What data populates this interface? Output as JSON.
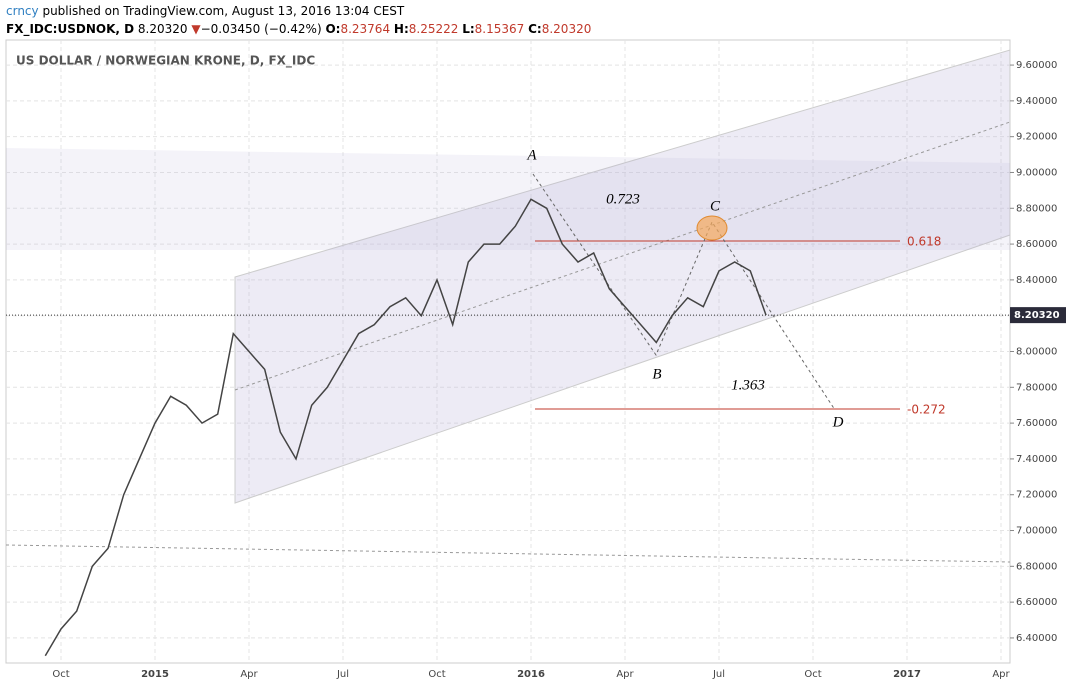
{
  "header": {
    "user": "crncy",
    "text": "published on TradingView.com, August 13, 2016 13:04 CEST",
    "symbol": "FX_IDC:USDNOK, D",
    "last": "8.20320",
    "arrow": "▼",
    "change": "−0.03450 (−0.42%)",
    "o_label": "O:",
    "o": "8.23764",
    "h_label": "H:",
    "h": "8.25222",
    "l_label": "L:",
    "l": "8.15367",
    "c_label": "C:",
    "c": "8.20320"
  },
  "chart_data": {
    "type": "line",
    "title": "US DOLLAR / NORWEGIAN KRONE, D, FX_IDC",
    "color": "#444444",
    "categories": [
      null,
      "Oct",
      null,
      null,
      null,
      null,
      null,
      "2015",
      null,
      null,
      null,
      null,
      null,
      "Apr",
      null,
      null,
      null,
      null,
      null,
      "Jul",
      null,
      null,
      null,
      null,
      null,
      "Oct",
      null,
      null,
      null,
      null,
      null,
      "2016",
      null,
      null,
      null,
      null,
      null,
      "Apr",
      null,
      null,
      null,
      null,
      null,
      "Jul",
      null,
      null,
      null,
      null,
      null,
      "Oct",
      null,
      null,
      null,
      null,
      null,
      "2017",
      null,
      null,
      null,
      null,
      null,
      "Apr"
    ],
    "values": [
      6.3,
      6.45,
      6.55,
      6.8,
      6.9,
      7.2,
      7.4,
      7.6,
      7.75,
      7.7,
      7.6,
      7.65,
      8.1,
      8.0,
      7.9,
      7.55,
      7.4,
      7.7,
      7.8,
      7.95,
      8.1,
      8.15,
      8.25,
      8.3,
      8.2,
      8.4,
      8.15,
      8.5,
      8.6,
      8.6,
      8.7,
      8.85,
      8.8,
      8.6,
      8.5,
      8.55,
      8.35,
      8.25,
      8.15,
      8.05,
      8.2,
      8.3,
      8.25,
      8.45,
      8.5,
      8.45,
      8.2032,
      null,
      null,
      null,
      null,
      null,
      null,
      null,
      null,
      null,
      null,
      null,
      null,
      null,
      null,
      null
    ],
    "last_label": "8.20320",
    "ylim": [
      6.26,
      9.74
    ],
    "yticks": [
      {
        "value": 6.4,
        "label": "6.40000"
      },
      {
        "value": 6.6,
        "label": "6.60000"
      },
      {
        "value": 6.8,
        "label": "6.80000"
      },
      {
        "value": 7.0,
        "label": "7.00000"
      },
      {
        "value": 7.2,
        "label": "7.20000"
      },
      {
        "value": 7.4,
        "label": "7.40000"
      },
      {
        "value": 7.6,
        "label": "7.60000"
      },
      {
        "value": 7.8,
        "label": "7.80000"
      },
      {
        "value": 8.0,
        "label": "8.00000"
      },
      {
        "value": 8.2,
        "label": "8.20000"
      },
      {
        "value": 8.4,
        "label": "8.40000"
      },
      {
        "value": 8.6,
        "label": "8.60000"
      },
      {
        "value": 8.8,
        "label": "8.80000"
      },
      {
        "value": 9.0,
        "label": "9.00000"
      },
      {
        "value": 9.2,
        "label": "9.20000"
      },
      {
        "value": 9.4,
        "label": "9.40000"
      },
      {
        "value": 9.6,
        "label": "9.60000"
      }
    ],
    "grid": true,
    "annotations": [
      "A",
      "B",
      "C",
      "D",
      "0.723",
      "1.363",
      "0.618",
      "-0.272"
    ]
  }
}
